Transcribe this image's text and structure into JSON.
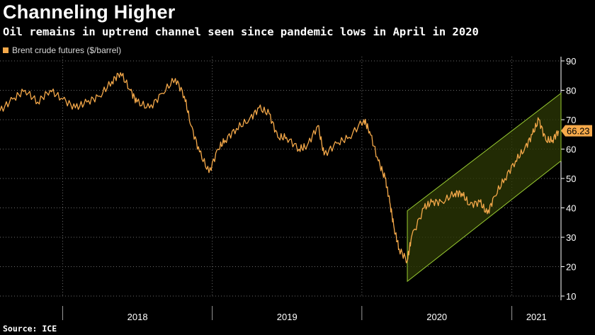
{
  "header": {
    "title": "Channeling Higher",
    "subtitle": "Oil remains in uptrend channel seen since pandemic lows in April in 2020",
    "source": "Source: ICE"
  },
  "colors": {
    "series": "#f5a94a",
    "channel_fill": "#2e3a06",
    "channel_line": "#9acd32",
    "grid": "#6a6a6a",
    "background": "#000000"
  },
  "chart_data": {
    "type": "line",
    "title": "Channeling Higher",
    "subtitle": "Oil remains in uptrend channel seen since pandemic lows in April in 2020",
    "legend": [
      "Brent crude futures ($/barrel)"
    ],
    "legend_position": "top-left",
    "grid": true,
    "ylim": [
      10,
      90
    ],
    "yticks": [
      10,
      20,
      30,
      40,
      50,
      60,
      70,
      80,
      90
    ],
    "xlim": [
      "2017-08-01",
      "2021-05-01"
    ],
    "x_tick_labels": [
      "2018",
      "2019",
      "2020",
      "2021"
    ],
    "last_value_label": "66.23",
    "series": [
      {
        "name": "Brent crude futures ($/barrel)",
        "x": [
          "2017-08-01",
          "2017-09-01",
          "2017-10-01",
          "2017-11-01",
          "2017-12-01",
          "2018-01-01",
          "2018-02-01",
          "2018-03-01",
          "2018-04-01",
          "2018-05-01",
          "2018-05-22",
          "2018-06-15",
          "2018-07-01",
          "2018-08-01",
          "2018-09-01",
          "2018-10-03",
          "2018-10-25",
          "2018-11-10",
          "2018-12-01",
          "2018-12-24",
          "2019-01-15",
          "2019-02-01",
          "2019-03-01",
          "2019-04-01",
          "2019-04-25",
          "2019-05-20",
          "2019-06-10",
          "2019-07-01",
          "2019-08-01",
          "2019-08-20",
          "2019-09-16",
          "2019-10-01",
          "2019-11-01",
          "2019-12-01",
          "2020-01-06",
          "2020-01-20",
          "2020-02-10",
          "2020-02-27",
          "2020-03-09",
          "2020-03-20",
          "2020-04-01",
          "2020-04-21",
          "2020-05-01",
          "2020-06-01",
          "2020-06-20",
          "2020-07-15",
          "2020-08-15",
          "2020-09-01",
          "2020-09-20",
          "2020-10-15",
          "2020-11-02",
          "2020-11-20",
          "2020-12-15",
          "2021-01-10",
          "2021-02-01",
          "2021-02-20",
          "2021-03-08",
          "2021-03-25",
          "2021-04-10",
          "2021-04-25"
        ],
        "values": [
          73,
          77,
          80,
          76,
          80,
          77,
          74,
          76,
          78,
          83,
          86,
          80,
          76,
          74,
          79,
          84,
          78,
          68,
          59,
          52,
          60,
          63,
          67,
          70,
          74,
          72,
          64,
          64,
          60,
          61,
          68,
          58,
          62,
          64,
          70,
          66,
          56,
          50,
          42,
          33,
          26,
          22,
          30,
          40,
          42,
          42,
          45,
          45,
          41,
          42,
          38,
          44,
          50,
          56,
          60,
          65,
          70,
          63,
          63,
          66.23
        ]
      },
      {
        "name": "",
        "x": [
          "2020-04-21",
          "2021-05-01"
        ],
        "upper": [
          39,
          79
        ],
        "lower": [
          15,
          56
        ]
      }
    ]
  }
}
